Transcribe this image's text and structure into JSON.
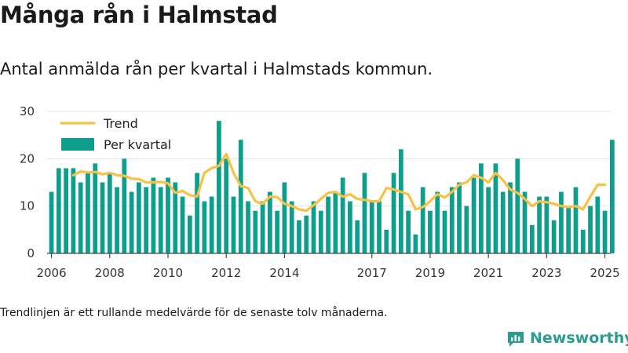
{
  "title": "Många rån i Halmstad",
  "subtitle": "Antal anmälda rån per kvartal i Halmstads kommun.",
  "footnote": "Trendlinjen är ett rullande medelvärde för de senaste tolv månaderna.",
  "brand": "Newsworthy",
  "colors": {
    "bars": "#0e9e8e",
    "trend": "#f6c244",
    "grid": "#e3e3e3",
    "axis": "#444444"
  },
  "chart_data": {
    "type": "bar",
    "ylim": [
      0,
      30
    ],
    "yticks": [
      0,
      10,
      20,
      30
    ],
    "xlim": [
      2005.85,
      2025.2
    ],
    "xticks": [
      2006,
      2008,
      2010,
      2012,
      2014,
      2017,
      2019,
      2021,
      2023,
      2025
    ],
    "grid": true,
    "legend": {
      "placement": "top-left",
      "entries": [
        {
          "label": "Trend",
          "kind": "line"
        },
        {
          "label": "Per kvartal",
          "kind": "bar"
        }
      ]
    },
    "series": [
      {
        "name": "Per kvartal",
        "kind": "bar",
        "start_year": 2006,
        "values": [
          13,
          18,
          18,
          18,
          15,
          17,
          19,
          15,
          17,
          14,
          20,
          13,
          15,
          14,
          16,
          14,
          16,
          15,
          12,
          8,
          17,
          11,
          12,
          28,
          20,
          12,
          24,
          11,
          9,
          11,
          13,
          9,
          15,
          11,
          7,
          8,
          11,
          9,
          12,
          13,
          16,
          11,
          7,
          17,
          11,
          11,
          5,
          17,
          22,
          9,
          4,
          14,
          9,
          13,
          9,
          14,
          15,
          10,
          16,
          19,
          14,
          19,
          13,
          15,
          20,
          13,
          6,
          12,
          12,
          7,
          13,
          10,
          14,
          5,
          10,
          12,
          9,
          24
        ]
      },
      {
        "name": "Trend",
        "kind": "line",
        "x": [
          2006.75,
          2007.0,
          2007.25,
          2007.5,
          2007.75,
          2008.0,
          2008.25,
          2008.5,
          2008.75,
          2009.0,
          2009.25,
          2009.5,
          2009.75,
          2010.0,
          2010.25,
          2010.5,
          2010.75,
          2011.0,
          2011.25,
          2011.5,
          2011.75,
          2012.0,
          2012.25,
          2012.5,
          2012.75,
          2013.0,
          2013.25,
          2013.5,
          2013.75,
          2014.0,
          2014.25,
          2014.5,
          2014.75,
          2015.0,
          2015.25,
          2015.5,
          2015.75,
          2016.0,
          2016.25,
          2016.5,
          2016.75,
          2017.0,
          2017.25,
          2017.5,
          2017.75,
          2018.0,
          2018.25,
          2018.5,
          2018.75,
          2019.0,
          2019.25,
          2019.5,
          2019.75,
          2020.0,
          2020.25,
          2020.5,
          2020.75,
          2021.0,
          2021.25,
          2021.5,
          2021.75,
          2022.0,
          2022.25,
          2022.5,
          2022.75,
          2023.0,
          2023.25,
          2023.5,
          2023.75,
          2024.0,
          2024.25,
          2024.5,
          2024.75,
          2025.0
        ],
        "values": [
          16.5,
          17.3,
          17.1,
          17.2,
          16.7,
          17.0,
          16.5,
          16.4,
          15.8,
          15.7,
          15.0,
          15.0,
          15.1,
          14.8,
          12.8,
          13.2,
          12.3,
          12.0,
          17.0,
          18.0,
          18.5,
          21.0,
          17.0,
          14.2,
          13.8,
          11.0,
          10.5,
          12.0,
          11.9,
          10.5,
          10.0,
          9.3,
          9.0,
          10.2,
          11.5,
          12.8,
          13.0,
          12.0,
          12.5,
          11.5,
          11.3,
          11.0,
          11.0,
          13.8,
          13.5,
          13.0,
          12.5,
          9.3,
          9.8,
          11.0,
          12.5,
          11.8,
          13.0,
          14.5,
          15.0,
          16.5,
          16.0,
          15.0,
          17.0,
          15.5,
          13.5,
          12.8,
          11.5,
          10.0,
          11.0,
          10.8,
          10.5,
          10.0,
          9.8,
          10.0,
          9.3,
          12.0,
          14.5,
          14.5
        ]
      }
    ]
  }
}
